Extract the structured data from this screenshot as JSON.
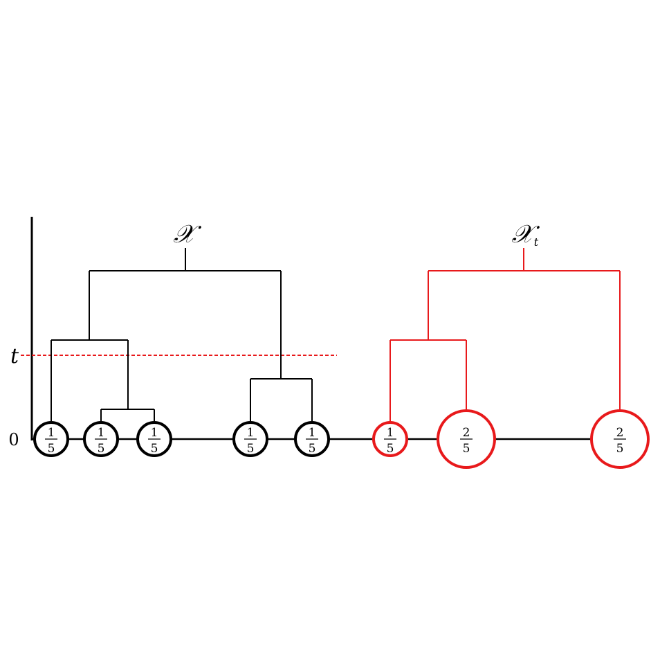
{
  "axis": {
    "zero_label": "0",
    "t_label": "t"
  },
  "left_tree": {
    "root_label": "𝒳",
    "color": "#000000",
    "leaves": [
      {
        "num": "1",
        "den": "5"
      },
      {
        "num": "1",
        "den": "5"
      },
      {
        "num": "1",
        "den": "5"
      },
      {
        "num": "1",
        "den": "5"
      },
      {
        "num": "1",
        "den": "5"
      }
    ]
  },
  "right_tree": {
    "root_label": "𝒳",
    "root_subscript": "t",
    "color": "#e8191b",
    "leaves": [
      {
        "num": "1",
        "den": "5"
      },
      {
        "num": "2",
        "den": "5"
      },
      {
        "num": "2",
        "den": "5"
      }
    ]
  },
  "threshold_line": {
    "color": "#e8191b",
    "style": "dashed"
  }
}
